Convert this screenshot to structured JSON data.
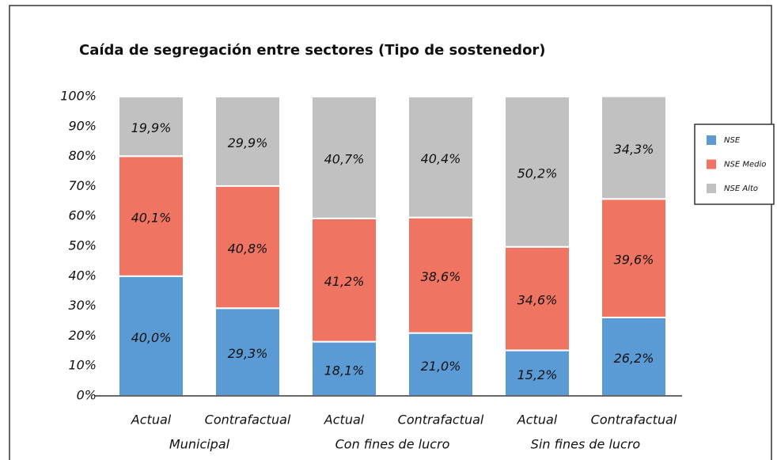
{
  "chart_data": {
    "type": "stacked_bar",
    "title": "Caída de segregación entre sectores (Tipo de sostenedor)",
    "categories": [
      "Actual",
      "Contrafactual",
      "Actual",
      "Contrafactual",
      "Actual",
      "Contrafactual"
    ],
    "groups": [
      "Municipal",
      "Con fines de lucro",
      "Sin fines de lucro"
    ],
    "series": [
      {
        "name": "NSE",
        "color": "#5b9bd5",
        "values": [
          40.0,
          29.3,
          18.1,
          21.0,
          15.2,
          26.2
        ],
        "value_labels": [
          "40,0%",
          "29,3%",
          "18,1%",
          "21,0%",
          "15,2%",
          "26,2%"
        ]
      },
      {
        "name": "NSE Medio",
        "color": "#ef7462",
        "values": [
          40.1,
          40.8,
          41.2,
          38.6,
          34.6,
          39.6
        ],
        "value_labels": [
          "40,1%",
          "40,8%",
          "41,2%",
          "38,6%",
          "34,6%",
          "39,6%"
        ]
      },
      {
        "name": "NSE Alto",
        "color": "#c1c1c1",
        "values": [
          19.9,
          29.9,
          40.7,
          40.4,
          50.2,
          34.3
        ],
        "value_labels": [
          "19,9%",
          "29,9%",
          "40,7%",
          "40,4%",
          "50,2%",
          "34,3%"
        ]
      }
    ],
    "ylim": [
      0,
      100
    ],
    "yticks": [
      {
        "value": 0,
        "label": "0%"
      },
      {
        "value": 10,
        "label": "10%"
      },
      {
        "value": 20,
        "label": "20%"
      },
      {
        "value": 30,
        "label": "30%"
      },
      {
        "value": 40,
        "label": "40%"
      },
      {
        "value": 50,
        "label": "50%"
      },
      {
        "value": 60,
        "label": "60%"
      },
      {
        "value": 70,
        "label": "70%"
      },
      {
        "value": 80,
        "label": "80%"
      },
      {
        "value": 90,
        "label": "90%"
      },
      {
        "value": 100,
        "label": "100%"
      }
    ],
    "grid": false,
    "legend": "right"
  }
}
